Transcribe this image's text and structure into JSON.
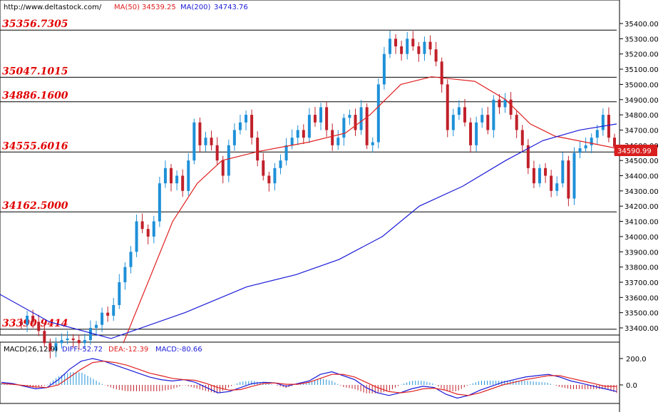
{
  "header": {
    "url": "http://www.deltastock.com/",
    "ma50_label": "MA(50)",
    "ma50_value": "34539.25",
    "ma200_label": "MA(200)",
    "ma200_value": "34743.76"
  },
  "macd_header": {
    "title": "MACD(26,12,9)",
    "diff": "DIFF:-52.72",
    "dea": "DEA:-12.39",
    "macd": "MACD:-80.66"
  },
  "colors": {
    "bull": "#1e90d8",
    "bear": "#c0202a",
    "ma50": "#e02020",
    "ma200": "#1a1ad8",
    "level_text": "#e00000",
    "price_label_bg": "#d81e1e"
  },
  "chart_data": [
    {
      "type": "candlestick",
      "ylim": [
        33350,
        35500
      ],
      "y_ticks": [
        "35400.00",
        "35300.00",
        "35200.00",
        "35100.00",
        "35000.00",
        "34900.00",
        "34800.00",
        "34700.00",
        "34600.00",
        "34500.00",
        "34400.00",
        "34300.00",
        "34200.00",
        "34100.00",
        "34000.00",
        "33900.00",
        "33800.00",
        "33700.00",
        "33600.00",
        "33500.00",
        "33400.00"
      ],
      "last_price": "34590.99",
      "levels": [
        {
          "label": "35356.7305",
          "value": 35356.7305
        },
        {
          "label": "35047.1015",
          "value": 35047.1015
        },
        {
          "label": "34886.1600",
          "value": 34886.16
        },
        {
          "label": "34555.6016",
          "value": 34555.6016
        },
        {
          "label": "34162.5000",
          "value": 34162.5
        },
        {
          "label": "33390.9414",
          "value": 33390.9414
        }
      ],
      "series_close": [
        33420,
        33480,
        33440,
        33380,
        33300,
        33250,
        33300,
        33320,
        33330,
        33320,
        33300,
        33320,
        33400,
        33420,
        33500,
        33480,
        33550,
        33700,
        33800,
        33900,
        34100,
        34050,
        34000,
        34100,
        34350,
        34450,
        34350,
        34400,
        34300,
        34500,
        34750,
        34600,
        34650,
        34600,
        34500,
        34400,
        34600,
        34700,
        34750,
        34800,
        34650,
        34500,
        34400,
        34350,
        34450,
        34500,
        34600,
        34650,
        34700,
        34650,
        34800,
        34750,
        34850,
        34700,
        34600,
        34650,
        34780,
        34800,
        34700,
        34850,
        34600,
        34620,
        35000,
        35200,
        35300,
        35250,
        35200,
        35300,
        35250,
        35200,
        35280,
        35230,
        35150,
        35000,
        34700,
        34800,
        34850,
        34750,
        34600,
        34750,
        34800,
        34700,
        34900,
        34850,
        34900,
        34800,
        34700,
        34600,
        34450,
        34350,
        34450,
        34400,
        34300,
        34350,
        34500,
        34250,
        34550,
        34580,
        34600,
        34650,
        34700,
        34800,
        34650,
        34590
      ],
      "ma50": [
        {
          "x": 0.2,
          "y": 33300
        },
        {
          "x": 0.22,
          "y": 33500
        },
        {
          "x": 0.25,
          "y": 33800
        },
        {
          "x": 0.28,
          "y": 34100
        },
        {
          "x": 0.32,
          "y": 34350
        },
        {
          "x": 0.36,
          "y": 34500
        },
        {
          "x": 0.42,
          "y": 34560
        },
        {
          "x": 0.5,
          "y": 34620
        },
        {
          "x": 0.56,
          "y": 34680
        },
        {
          "x": 0.6,
          "y": 34800
        },
        {
          "x": 0.65,
          "y": 35000
        },
        {
          "x": 0.7,
          "y": 35050
        },
        {
          "x": 0.77,
          "y": 35020
        },
        {
          "x": 0.82,
          "y": 34900
        },
        {
          "x": 0.86,
          "y": 34740
        },
        {
          "x": 0.9,
          "y": 34660
        },
        {
          "x": 0.95,
          "y": 34620
        },
        {
          "x": 1.0,
          "y": 34580
        }
      ],
      "ma200": [
        {
          "x": 0.0,
          "y": 33620
        },
        {
          "x": 0.08,
          "y": 33440
        },
        {
          "x": 0.18,
          "y": 33330
        },
        {
          "x": 0.3,
          "y": 33500
        },
        {
          "x": 0.4,
          "y": 33670
        },
        {
          "x": 0.48,
          "y": 33750
        },
        {
          "x": 0.55,
          "y": 33850
        },
        {
          "x": 0.62,
          "y": 34000
        },
        {
          "x": 0.68,
          "y": 34200
        },
        {
          "x": 0.75,
          "y": 34330
        },
        {
          "x": 0.82,
          "y": 34500
        },
        {
          "x": 0.88,
          "y": 34630
        },
        {
          "x": 0.94,
          "y": 34700
        },
        {
          "x": 1.0,
          "y": 34740
        }
      ]
    },
    {
      "type": "macd",
      "ylim": [
        -80,
        250
      ],
      "y_ticks": [
        "200.0",
        "0.0"
      ],
      "diff": [
        20,
        10,
        -10,
        -30,
        -20,
        40,
        120,
        180,
        200,
        180,
        150,
        120,
        90,
        60,
        40,
        30,
        40,
        20,
        -20,
        -60,
        -50,
        -20,
        10,
        20,
        15,
        -10,
        10,
        30,
        80,
        100,
        70,
        40,
        -20,
        -60,
        -80,
        -60,
        -30,
        -10,
        -20,
        -70,
        -100,
        -80,
        -40,
        -10,
        20,
        40,
        60,
        70,
        80,
        60,
        30,
        10,
        -10,
        -30,
        -50
      ],
      "dea": [
        10,
        5,
        -5,
        -15,
        -20,
        0,
        60,
        120,
        170,
        180,
        170,
        150,
        120,
        90,
        70,
        50,
        40,
        35,
        10,
        -20,
        -40,
        -35,
        -10,
        10,
        15,
        5,
        5,
        20,
        50,
        80,
        80,
        60,
        20,
        -20,
        -50,
        -60,
        -50,
        -30,
        -25,
        -40,
        -70,
        -80,
        -60,
        -30,
        0,
        20,
        40,
        55,
        70,
        70,
        50,
        30,
        10,
        -10,
        -12
      ]
    }
  ]
}
